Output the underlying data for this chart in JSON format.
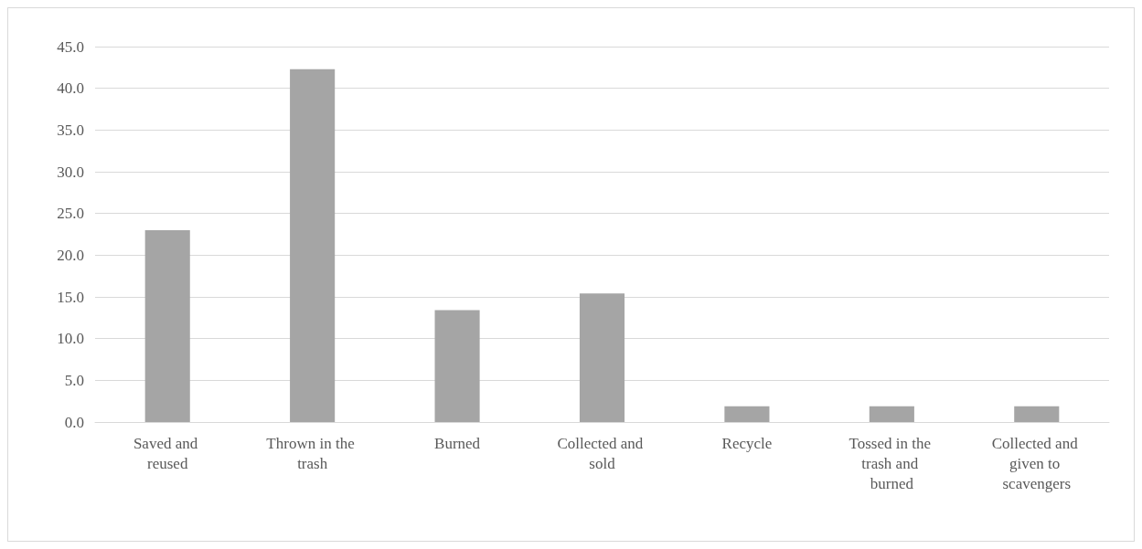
{
  "chart_data": {
    "type": "bar",
    "categories": [
      "Saved and reused",
      "Thrown in the trash",
      "Burned",
      "Collected and sold",
      "Recycle",
      "Tossed in the trash and burned",
      "Collected and given to scavengers"
    ],
    "values": [
      23.0,
      42.3,
      13.4,
      15.4,
      1.9,
      1.9,
      1.9
    ],
    "color": "#a5a5a5",
    "ylim": [
      0,
      45
    ],
    "yticks": [
      {
        "value": 0,
        "label": "0.0"
      },
      {
        "value": 5,
        "label": "5.0"
      },
      {
        "value": 10,
        "label": "10.0"
      },
      {
        "value": 15,
        "label": "15.0"
      },
      {
        "value": 20,
        "label": "20.0"
      },
      {
        "value": 25,
        "label": "25.0"
      },
      {
        "value": 30,
        "label": "30.0"
      },
      {
        "value": 35,
        "label": "35.0"
      },
      {
        "value": 40,
        "label": "40.0"
      },
      {
        "value": 45,
        "label": "45.0"
      }
    ],
    "grid": "y"
  }
}
